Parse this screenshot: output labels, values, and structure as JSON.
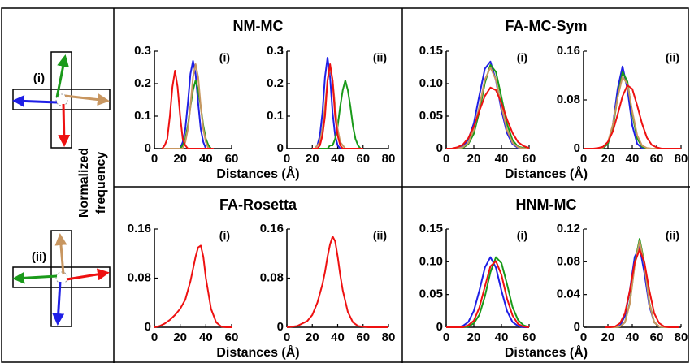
{
  "diagram": {
    "labels": [
      "(i)",
      "(ii)"
    ]
  },
  "ylabel": [
    "Normalized",
    "frequency"
  ],
  "chart_data": [
    {
      "type": "line",
      "title": "NM-MC",
      "xlabel": "Distances (Å)",
      "panel_label": "(i)",
      "xlim": [
        0,
        60
      ],
      "xticks": [
        0,
        20,
        40,
        60
      ],
      "ylim": [
        0,
        0.3
      ],
      "yticks": [
        0,
        0.1,
        0.2,
        0.3
      ],
      "x": [
        6,
        8,
        10,
        12,
        14,
        16,
        18,
        20,
        22,
        24,
        26,
        28,
        30,
        32,
        34,
        36,
        38,
        40,
        42,
        44,
        46
      ],
      "series": [
        {
          "color": "#1f1fe6",
          "values": [
            0,
            0,
            0,
            0,
            0,
            0,
            0,
            0,
            0.02,
            0.06,
            0.14,
            0.23,
            0.27,
            0.23,
            0.14,
            0.06,
            0.02,
            0,
            0,
            0,
            0
          ]
        },
        {
          "color": "#1a9a1a",
          "values": [
            0,
            0,
            0,
            0,
            0,
            0,
            0,
            0,
            0.01,
            0.03,
            0.07,
            0.13,
            0.18,
            0.21,
            0.18,
            0.13,
            0.07,
            0.03,
            0.01,
            0,
            0
          ]
        },
        {
          "color": "#c89660",
          "values": [
            0,
            0,
            0,
            0,
            0,
            0,
            0,
            0,
            0,
            0.02,
            0.06,
            0.13,
            0.22,
            0.26,
            0.22,
            0.13,
            0.06,
            0.02,
            0,
            0,
            0
          ]
        },
        {
          "color": "#ee1111",
          "values": [
            0,
            0.01,
            0.03,
            0.1,
            0.19,
            0.24,
            0.19,
            0.1,
            0.03,
            0.01,
            0,
            0,
            0,
            0,
            0,
            0,
            0,
            0,
            0,
            0,
            0
          ]
        }
      ]
    },
    {
      "type": "line",
      "panel_label": "(ii)",
      "xlim": [
        0,
        80
      ],
      "xticks": [
        0,
        20,
        40,
        60,
        80
      ],
      "ylim": [
        0,
        0.3
      ],
      "yticks": [
        0,
        0.1,
        0.2,
        0.3
      ],
      "x": [
        20,
        22,
        24,
        26,
        28,
        30,
        32,
        34,
        36,
        38,
        40,
        42,
        44,
        46,
        48,
        50,
        52,
        54,
        56,
        58,
        60
      ],
      "series": [
        {
          "color": "#1f1fe6",
          "values": [
            0,
            0,
            0.01,
            0.04,
            0.11,
            0.22,
            0.28,
            0.22,
            0.11,
            0.04,
            0.01,
            0,
            0,
            0,
            0,
            0,
            0,
            0,
            0,
            0,
            0
          ]
        },
        {
          "color": "#1a9a1a",
          "values": [
            0,
            0,
            0,
            0,
            0,
            0,
            0,
            0.01,
            0.01,
            0.03,
            0.07,
            0.13,
            0.18,
            0.21,
            0.18,
            0.13,
            0.07,
            0.03,
            0.01,
            0,
            0
          ]
        },
        {
          "color": "#c89660",
          "values": [
            0,
            0,
            0.01,
            0.02,
            0.06,
            0.13,
            0.21,
            0.25,
            0.21,
            0.13,
            0.06,
            0.02,
            0.01,
            0,
            0,
            0,
            0,
            0,
            0,
            0,
            0
          ]
        },
        {
          "color": "#ee1111",
          "values": [
            0,
            0,
            0,
            0.01,
            0.04,
            0.1,
            0.21,
            0.26,
            0.21,
            0.1,
            0.04,
            0.01,
            0,
            0,
            0,
            0,
            0,
            0,
            0,
            0,
            0
          ]
        }
      ]
    },
    {
      "type": "line",
      "title": "FA-MC-Sym",
      "xlabel": "Distances (Å)",
      "panel_label": "(i)",
      "xlim": [
        0,
        60
      ],
      "xticks": [
        0,
        20,
        40,
        60
      ],
      "ylim": [
        0,
        0.15
      ],
      "yticks": [
        0,
        0.05,
        {
          "value": 0.1,
          "label": "0.10"
        },
        0.15
      ],
      "x": [
        0,
        4,
        8,
        12,
        16,
        20,
        24,
        28,
        32,
        36,
        40,
        44,
        48,
        52,
        56,
        60
      ],
      "series": [
        {
          "color": "#1f1fe6",
          "values": [
            0,
            0,
            0,
            0.003,
            0.014,
            0.039,
            0.082,
            0.123,
            0.134,
            0.105,
            0.059,
            0.024,
            0.007,
            0.001,
            0,
            0
          ]
        },
        {
          "color": "#1a9a1a",
          "values": [
            0,
            0,
            0,
            0.001,
            0.007,
            0.023,
            0.057,
            0.101,
            0.129,
            0.118,
            0.079,
            0.038,
            0.013,
            0.003,
            0.001,
            0
          ]
        },
        {
          "color": "#c89660",
          "values": [
            0,
            0,
            0,
            0.002,
            0.009,
            0.029,
            0.065,
            0.106,
            0.125,
            0.106,
            0.065,
            0.029,
            0.009,
            0.002,
            0,
            0
          ]
        },
        {
          "color": "#ee1111",
          "values": [
            0,
            0,
            0.002,
            0.006,
            0.016,
            0.034,
            0.058,
            0.081,
            0.094,
            0.09,
            0.07,
            0.045,
            0.024,
            0.01,
            0.004,
            0.001
          ]
        }
      ]
    },
    {
      "type": "line",
      "panel_label": "(ii)",
      "xlim": [
        0,
        80
      ],
      "xticks": [
        0,
        20,
        40,
        60,
        80
      ],
      "ylim": [
        0,
        0.16
      ],
      "yticks": [
        0,
        0.08,
        0.16
      ],
      "x": [
        0,
        4,
        8,
        12,
        16,
        20,
        24,
        28,
        32,
        36,
        40,
        44,
        48,
        52,
        56,
        60,
        64,
        68,
        72,
        76,
        80
      ],
      "series": [
        {
          "color": "#1f1fe6",
          "values": [
            0,
            0,
            0,
            0,
            0.001,
            0.008,
            0.038,
            0.098,
            0.135,
            0.098,
            0.038,
            0.008,
            0.001,
            0,
            0,
            0,
            0,
            0,
            0,
            0,
            0
          ]
        },
        {
          "color": "#1a9a1a",
          "values": [
            0,
            0,
            0,
            0,
            0.001,
            0.008,
            0.033,
            0.085,
            0.126,
            0.11,
            0.057,
            0.017,
            0.003,
            0,
            0,
            0,
            0,
            0,
            0,
            0,
            0
          ]
        },
        {
          "color": "#c89660",
          "values": [
            0,
            0,
            0,
            0,
            0.002,
            0.011,
            0.039,
            0.084,
            0.118,
            0.106,
            0.061,
            0.022,
            0.005,
            0.001,
            0,
            0,
            0,
            0,
            0,
            0,
            0
          ]
        },
        {
          "color": "#ee1111",
          "values": [
            0,
            0,
            0,
            0.001,
            0.003,
            0.011,
            0.028,
            0.056,
            0.086,
            0.104,
            0.098,
            0.071,
            0.041,
            0.018,
            0.006,
            0.002,
            0,
            0,
            0,
            0,
            0
          ]
        }
      ]
    },
    {
      "type": "line",
      "title": "FA-Rosetta",
      "xlabel": "Distances (Å)",
      "panel_label": "(i)",
      "xlim": [
        0,
        60
      ],
      "xticks": [
        0,
        20,
        40,
        60
      ],
      "ylim": [
        0,
        0.16
      ],
      "yticks": [
        0,
        0.08,
        0.16
      ],
      "x": [
        0,
        4,
        8,
        12,
        16,
        20,
        24,
        28,
        30,
        32,
        34,
        36,
        38,
        40,
        44,
        48,
        52,
        56,
        60
      ],
      "series": [
        {
          "color": "#ee1111",
          "values": [
            0,
            0.002,
            0.006,
            0.012,
            0.02,
            0.03,
            0.045,
            0.075,
            0.095,
            0.115,
            0.13,
            0.133,
            0.115,
            0.08,
            0.03,
            0.008,
            0.001,
            0,
            0
          ]
        }
      ]
    },
    {
      "type": "line",
      "panel_label": "(ii)",
      "xlim": [
        0,
        80
      ],
      "xticks": [
        0,
        20,
        40,
        60,
        80
      ],
      "ylim": [
        0,
        0.16
      ],
      "yticks": [
        0,
        0.08,
        0.16
      ],
      "x": [
        0,
        8,
        16,
        20,
        24,
        28,
        30,
        32,
        34,
        36,
        38,
        40,
        42,
        44,
        48,
        52,
        56,
        64,
        72,
        80
      ],
      "series": [
        {
          "color": "#ee1111",
          "values": [
            0,
            0.002,
            0.01,
            0.02,
            0.04,
            0.07,
            0.09,
            0.115,
            0.135,
            0.148,
            0.14,
            0.115,
            0.085,
            0.06,
            0.025,
            0.008,
            0.002,
            0,
            0,
            0
          ]
        }
      ]
    },
    {
      "type": "line",
      "title": "HNM-MC",
      "xlabel": "Distances (Å)",
      "panel_label": "(i)",
      "xlim": [
        0,
        60
      ],
      "xticks": [
        0,
        20,
        40,
        60
      ],
      "ylim": [
        0,
        0.15
      ],
      "yticks": [
        0,
        0.05,
        {
          "value": 0.1,
          "label": "0.10"
        },
        0.15
      ],
      "x": [
        0,
        4,
        8,
        12,
        16,
        20,
        24,
        28,
        32,
        36,
        40,
        44,
        48,
        52,
        56,
        60
      ],
      "series": [
        {
          "color": "#1f1fe6",
          "values": [
            0,
            0,
            0,
            0.002,
            0.008,
            0.025,
            0.056,
            0.091,
            0.107,
            0.091,
            0.056,
            0.025,
            0.008,
            0.002,
            0,
            0
          ]
        },
        {
          "color": "#1a9a1a",
          "values": [
            0,
            0,
            0,
            0,
            0.001,
            0.006,
            0.019,
            0.047,
            0.084,
            0.107,
            0.098,
            0.066,
            0.031,
            0.011,
            0.003,
            0
          ]
        },
        {
          "color": "#ee1111",
          "values": [
            0,
            0,
            0,
            0,
            0.003,
            0.01,
            0.03,
            0.062,
            0.093,
            0.101,
            0.08,
            0.044,
            0.018,
            0.005,
            0.001,
            0
          ]
        }
      ]
    },
    {
      "type": "line",
      "panel_label": "(ii)",
      "xlim": [
        0,
        80
      ],
      "xticks": [
        0,
        20,
        40,
        60,
        80
      ],
      "ylim": [
        0,
        0.12
      ],
      "yticks": [
        0,
        0.04,
        0.08,
        0.12
      ],
      "x": [
        18,
        22,
        26,
        30,
        34,
        38,
        42,
        46,
        50,
        54,
        58,
        62,
        66,
        70,
        74,
        78
      ],
      "series": [
        {
          "color": "#1f1fe6",
          "values": [
            0,
            0,
            0,
            0.002,
            0.014,
            0.045,
            0.086,
            0.098,
            0.066,
            0.026,
            0.006,
            0.001,
            0,
            0,
            0,
            0
          ]
        },
        {
          "color": "#1a9a1a",
          "values": [
            0,
            0,
            0,
            0.001,
            0.006,
            0.03,
            0.078,
            0.108,
            0.078,
            0.03,
            0.006,
            0.001,
            0,
            0,
            0,
            0
          ]
        },
        {
          "color": "#c89660",
          "values": [
            0,
            0,
            0,
            0.001,
            0.006,
            0.029,
            0.076,
            0.105,
            0.076,
            0.029,
            0.006,
            0.001,
            0,
            0,
            0,
            0
          ]
        },
        {
          "color": "#ee1111",
          "values": [
            0,
            0,
            0.001,
            0.005,
            0.017,
            0.045,
            0.079,
            0.095,
            0.079,
            0.045,
            0.017,
            0.005,
            0.001,
            0,
            0,
            0
          ]
        }
      ]
    }
  ]
}
